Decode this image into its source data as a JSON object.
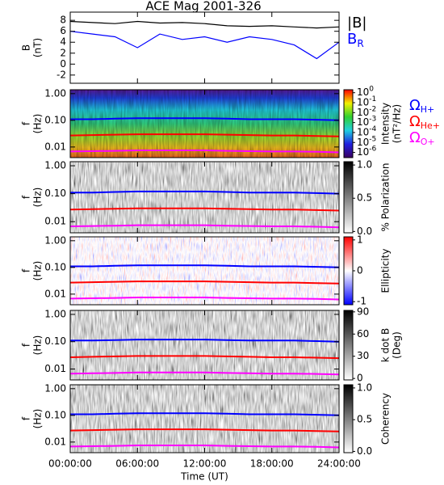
{
  "title": "ACE Mag 2001-326",
  "chart_data": [
    {
      "type": "line",
      "ylabel": [
        "B",
        "(nT)"
      ],
      "xlim": [
        0,
        24
      ],
      "xticks": [
        0,
        6,
        12,
        18,
        24
      ],
      "ylim": [
        -3.5,
        9.5
      ],
      "yticks": [
        -2,
        0,
        2,
        4,
        6,
        8
      ],
      "x": [
        0,
        2,
        4,
        6,
        8,
        10,
        12,
        14,
        16,
        18,
        20,
        22,
        24
      ],
      "series": [
        {
          "name": "|B|",
          "color": "#000000",
          "values": [
            7.8,
            7.6,
            7.4,
            7.8,
            7.5,
            7.6,
            7.4,
            7.0,
            6.9,
            7.0,
            6.8,
            6.6,
            6.8
          ]
        },
        {
          "name": "B",
          "name_sub": "R",
          "color": "#0000ff",
          "values": [
            6,
            5.5,
            5,
            3,
            5.5,
            4.5,
            5,
            4,
            5,
            4.5,
            3.5,
            1,
            4
          ]
        }
      ]
    },
    {
      "type": "spectrogram",
      "colormap": "rainbow",
      "ylabel": [
        "f",
        "(Hz)"
      ],
      "log_y": true,
      "xlim": [
        0,
        24
      ],
      "xticks": [
        0,
        6,
        12,
        18,
        24
      ],
      "ylim": [
        0.004,
        1.4
      ],
      "yticks": [
        {
          "value": 0.01,
          "label": "0.01"
        },
        {
          "value": 0.1,
          "label": "0.10"
        },
        {
          "value": 1,
          "label": "1.00"
        }
      ],
      "x": [
        0,
        2,
        4,
        6,
        8,
        10,
        12,
        14,
        16,
        18,
        20,
        22,
        24
      ],
      "series": [
        {
          "name": "Ω",
          "name_sub": "H+",
          "color": "#0000ff",
          "values": [
            0.11,
            0.11,
            0.115,
            0.12,
            0.12,
            0.12,
            0.12,
            0.115,
            0.11,
            0.11,
            0.11,
            0.105,
            0.1
          ]
        },
        {
          "name": "Ω",
          "name_sub": "He+",
          "color": "#ff0000",
          "values": [
            0.027,
            0.028,
            0.029,
            0.03,
            0.03,
            0.03,
            0.03,
            0.029,
            0.028,
            0.027,
            0.027,
            0.026,
            0.025
          ]
        },
        {
          "name": "Ω",
          "name_sub": "O+",
          "color": "#ff00ff",
          "values": [
            0.0068,
            0.007,
            0.0072,
            0.0075,
            0.0075,
            0.0075,
            0.0075,
            0.0072,
            0.007,
            0.0068,
            0.0068,
            0.0066,
            0.0063
          ]
        }
      ],
      "colorbar": {
        "label": [
          "Intensity",
          "(nT²/Hz)"
        ],
        "log": true,
        "lim": [
          3e-07,
          2
        ],
        "ticks": [
          {
            "value": 1,
            "label": "10",
            "exponent": "0"
          },
          {
            "value": 0.1,
            "label": "10",
            "exponent": "-1"
          },
          {
            "value": 0.01,
            "label": "10",
            "exponent": "-2"
          },
          {
            "value": 0.001,
            "label": "10",
            "exponent": "-3"
          },
          {
            "value": 0.0001,
            "label": "10",
            "exponent": "-4"
          },
          {
            "value": 1e-05,
            "label": "10",
            "exponent": "-5"
          },
          {
            "value": 1e-06,
            "label": "10",
            "exponent": "-6"
          }
        ]
      }
    },
    {
      "type": "spectrogram",
      "colormap": "gray",
      "ylabel": [
        "f",
        "(Hz)"
      ],
      "log_y": true,
      "xlim": [
        0,
        24
      ],
      "xticks": [
        0,
        6,
        12,
        18,
        24
      ],
      "ylim": [
        0.004,
        1.4
      ],
      "yticks": [
        {
          "value": 0.01,
          "label": "0.01"
        },
        {
          "value": 0.1,
          "label": "0.10"
        },
        {
          "value": 1,
          "label": "1.00"
        }
      ],
      "x": [
        0,
        2,
        4,
        6,
        8,
        10,
        12,
        14,
        16,
        18,
        20,
        22,
        24
      ],
      "series": [
        {
          "color": "#0000ff",
          "values": [
            0.11,
            0.11,
            0.115,
            0.12,
            0.12,
            0.12,
            0.12,
            0.115,
            0.11,
            0.11,
            0.11,
            0.105,
            0.1
          ]
        },
        {
          "color": "#ff0000",
          "values": [
            0.027,
            0.028,
            0.029,
            0.03,
            0.03,
            0.03,
            0.03,
            0.029,
            0.028,
            0.027,
            0.027,
            0.026,
            0.025
          ]
        },
        {
          "color": "#ff00ff",
          "values": [
            0.0068,
            0.007,
            0.0072,
            0.0075,
            0.0075,
            0.0075,
            0.0075,
            0.0072,
            0.007,
            0.0068,
            0.0068,
            0.0066,
            0.0063
          ]
        }
      ],
      "colorbar": {
        "label": [
          "% Polarization"
        ],
        "lim": [
          -0.02,
          1.05
        ],
        "ticks": [
          {
            "value": 1,
            "label": "1.0"
          },
          {
            "value": 0.5,
            "label": "0.5"
          },
          {
            "value": 0,
            "label": "0.0"
          }
        ]
      }
    },
    {
      "type": "spectrogram",
      "colormap": "bwr",
      "ylabel": [
        "f",
        "(Hz)"
      ],
      "log_y": true,
      "xlim": [
        0,
        24
      ],
      "xticks": [
        0,
        6,
        12,
        18,
        24
      ],
      "ylim": [
        0.004,
        1.4
      ],
      "yticks": [
        {
          "value": 0.01,
          "label": "0.01"
        },
        {
          "value": 0.1,
          "label": "0.10"
        },
        {
          "value": 1,
          "label": "1.00"
        }
      ],
      "x": [
        0,
        2,
        4,
        6,
        8,
        10,
        12,
        14,
        16,
        18,
        20,
        22,
        24
      ],
      "series": [
        {
          "color": "#0000ff",
          "values": [
            0.11,
            0.11,
            0.115,
            0.12,
            0.12,
            0.12,
            0.12,
            0.115,
            0.11,
            0.11,
            0.11,
            0.105,
            0.1
          ]
        },
        {
          "color": "#ff0000",
          "values": [
            0.027,
            0.028,
            0.029,
            0.03,
            0.03,
            0.03,
            0.03,
            0.029,
            0.028,
            0.027,
            0.027,
            0.026,
            0.025
          ]
        },
        {
          "color": "#ff00ff",
          "values": [
            0.0068,
            0.007,
            0.0072,
            0.0075,
            0.0075,
            0.0075,
            0.0075,
            0.0072,
            0.007,
            0.0068,
            0.0068,
            0.0066,
            0.0063
          ]
        }
      ],
      "colorbar": {
        "label": [
          "Ellipticity"
        ],
        "lim": [
          -1.1,
          1.1
        ],
        "ticks": [
          1,
          0,
          -1
        ]
      }
    },
    {
      "type": "spectrogram",
      "colormap": "gray",
      "ylabel": [
        "f",
        "(Hz)"
      ],
      "log_y": true,
      "xlim": [
        0,
        24
      ],
      "xticks": [
        0,
        6,
        12,
        18,
        24
      ],
      "ylim": [
        0.004,
        1.4
      ],
      "yticks": [
        {
          "value": 0.01,
          "label": "0.01"
        },
        {
          "value": 0.1,
          "label": "0.10"
        },
        {
          "value": 1,
          "label": "1.00"
        }
      ],
      "x": [
        0,
        2,
        4,
        6,
        8,
        10,
        12,
        14,
        16,
        18,
        20,
        22,
        24
      ],
      "series": [
        {
          "color": "#0000ff",
          "values": [
            0.11,
            0.11,
            0.115,
            0.12,
            0.12,
            0.12,
            0.12,
            0.115,
            0.11,
            0.11,
            0.11,
            0.105,
            0.1
          ]
        },
        {
          "color": "#ff0000",
          "values": [
            0.027,
            0.028,
            0.029,
            0.03,
            0.03,
            0.03,
            0.03,
            0.029,
            0.028,
            0.027,
            0.027,
            0.026,
            0.025
          ]
        },
        {
          "color": "#ff00ff",
          "values": [
            0.0068,
            0.007,
            0.0072,
            0.0075,
            0.0075,
            0.0075,
            0.0075,
            0.0072,
            0.007,
            0.0068,
            0.0068,
            0.0066,
            0.0063
          ]
        }
      ],
      "colorbar": {
        "label": [
          "k dot B",
          "(Deg)"
        ],
        "lim": [
          -2,
          92
        ],
        "ticks": [
          90,
          60,
          30,
          0
        ]
      }
    },
    {
      "type": "spectrogram",
      "colormap": "gray",
      "ylabel": [
        "f",
        "(Hz)"
      ],
      "log_y": true,
      "xlim": [
        0,
        24
      ],
      "xticks": [
        {
          "value": 0,
          "label": "00:00:00"
        },
        {
          "value": 6,
          "label": "06:00:00"
        },
        {
          "value": 12,
          "label": "12:00:00"
        },
        {
          "value": 18,
          "label": "18:00:00"
        },
        {
          "value": 24,
          "label": "24:00:00"
        }
      ],
      "xlabel": "Time (UT)",
      "ylim": [
        0.004,
        1.4
      ],
      "yticks": [
        {
          "value": 0.01,
          "label": "0.01"
        },
        {
          "value": 0.1,
          "label": "0.10"
        },
        {
          "value": 1,
          "label": "1.00"
        }
      ],
      "x": [
        0,
        2,
        4,
        6,
        8,
        10,
        12,
        14,
        16,
        18,
        20,
        22,
        24
      ],
      "series": [
        {
          "color": "#0000ff",
          "values": [
            0.11,
            0.11,
            0.115,
            0.12,
            0.12,
            0.12,
            0.12,
            0.115,
            0.11,
            0.11,
            0.11,
            0.105,
            0.1
          ]
        },
        {
          "color": "#ff0000",
          "values": [
            0.027,
            0.028,
            0.029,
            0.03,
            0.03,
            0.03,
            0.03,
            0.029,
            0.028,
            0.027,
            0.027,
            0.026,
            0.025
          ]
        },
        {
          "color": "#ff00ff",
          "values": [
            0.0068,
            0.007,
            0.0072,
            0.0075,
            0.0075,
            0.0075,
            0.0075,
            0.0072,
            0.007,
            0.0068,
            0.0068,
            0.0066,
            0.0063
          ]
        }
      ],
      "colorbar": {
        "label": [
          "Coherency"
        ],
        "lim": [
          -0.02,
          1.05
        ],
        "ticks": [
          {
            "value": 1,
            "label": "1.0"
          },
          {
            "value": 0.5,
            "label": "0.5"
          },
          {
            "value": 0,
            "label": "0.0"
          }
        ]
      }
    }
  ]
}
